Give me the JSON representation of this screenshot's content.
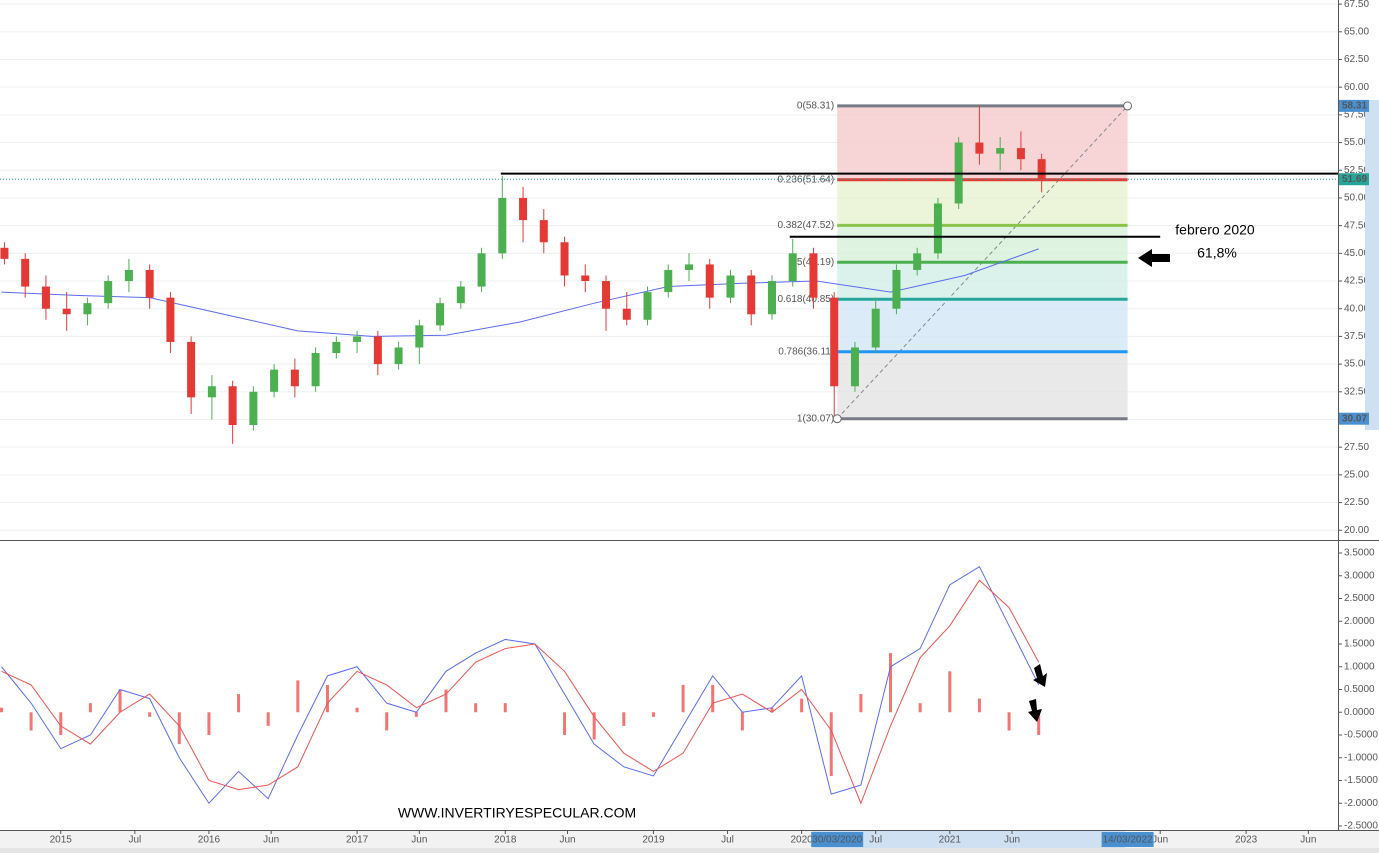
{
  "chart_data": [
    {
      "type": "candlestick",
      "xlim": [
        2014.59,
        2023.62
      ],
      "ylim": [
        19.12,
        67.87
      ],
      "yticks": [
        {
          "value": 67.5,
          "label": "67.50"
        },
        {
          "value": 65,
          "label": "65.00"
        },
        {
          "value": 62.5,
          "label": "62.50"
        },
        {
          "value": 60,
          "label": "60.00"
        },
        {
          "value": 57.5,
          "label": "57.50"
        },
        {
          "value": 55,
          "label": "55.00"
        },
        {
          "value": 52.5,
          "label": "52.50"
        },
        {
          "value": 50,
          "label": "50.00"
        },
        {
          "value": 47.5,
          "label": "47.50"
        },
        {
          "value": 45,
          "label": "45.00"
        },
        {
          "value": 42.5,
          "label": "42.50"
        },
        {
          "value": 40,
          "label": "40.00"
        },
        {
          "value": 37.5,
          "label": "37.50"
        },
        {
          "value": 35,
          "label": "35.00"
        },
        {
          "value": 32.5,
          "label": "32.50"
        },
        {
          "value": 30,
          "label": "30.00"
        },
        {
          "value": 27.5,
          "label": "27.50"
        },
        {
          "value": 25,
          "label": "25.00"
        },
        {
          "value": 22.5,
          "label": "22.50"
        },
        {
          "value": 20,
          "label": "20.00"
        }
      ],
      "grid": true,
      "up_color": "#4caf50",
      "down_color": "#e53935",
      "x": [
        2014.62,
        2014.76,
        2014.9,
        2015.04,
        2015.18,
        2015.32,
        2015.46,
        2015.6,
        2015.74,
        2015.88,
        2016.02,
        2016.16,
        2016.3,
        2016.44,
        2016.58,
        2016.72,
        2016.86,
        2017.0,
        2017.14,
        2017.28,
        2017.42,
        2017.56,
        2017.7,
        2017.84,
        2017.98,
        2018.12,
        2018.26,
        2018.4,
        2018.54,
        2018.68,
        2018.82,
        2018.96,
        2019.1,
        2019.24,
        2019.38,
        2019.52,
        2019.66,
        2019.8,
        2019.94,
        2020.08,
        2020.22,
        2020.36,
        2020.5,
        2020.64,
        2020.78,
        2020.92,
        2021.06,
        2021.2,
        2021.34,
        2021.48,
        2021.62
      ],
      "open": [
        45.5,
        44.5,
        42,
        40,
        39.5,
        40.5,
        42.5,
        43.5,
        41,
        37,
        32,
        33,
        29.5,
        32.5,
        34.5,
        33,
        36,
        37,
        37.5,
        35,
        36.5,
        38.5,
        40.5,
        42,
        45,
        50,
        48,
        46,
        43,
        42.5,
        40,
        39,
        41.5,
        43.5,
        44,
        41,
        43,
        39.5,
        42.5,
        45,
        41,
        33,
        36.5,
        40,
        43.5,
        45,
        49.5,
        55,
        54,
        54.5,
        53.5
      ],
      "high": [
        46,
        45,
        43,
        41.5,
        41,
        43,
        44.5,
        44,
        41.5,
        37.5,
        34,
        33.5,
        33,
        35,
        35.5,
        36.5,
        37.5,
        38,
        38,
        37,
        39,
        41,
        42.5,
        45.5,
        52,
        51,
        49,
        46.5,
        44,
        43,
        41.5,
        42,
        44,
        45,
        44.5,
        43.5,
        43.5,
        43,
        46.3,
        45.5,
        41.5,
        37,
        41,
        44,
        45.5,
        50,
        55.5,
        58.31,
        55.5,
        56,
        54
      ],
      "low": [
        44,
        41,
        39,
        38,
        38.5,
        40,
        41.5,
        40,
        36,
        30.5,
        30,
        27.8,
        29,
        32,
        32,
        32.5,
        35.5,
        36,
        34,
        34.5,
        35,
        38,
        40,
        41.5,
        44.5,
        46,
        45,
        42,
        41.5,
        38,
        38.5,
        38.5,
        41,
        42.5,
        40,
        40.5,
        38.5,
        39,
        42,
        40,
        30.07,
        32.5,
        36,
        39.5,
        43,
        44.5,
        49,
        53,
        52.5,
        52.5,
        50.5
      ],
      "close": [
        44.5,
        42,
        40,
        39.5,
        40.5,
        42.5,
        43.5,
        41,
        37,
        32,
        33,
        29.5,
        32.5,
        34.5,
        33,
        36,
        37,
        37.5,
        35,
        36.5,
        38.5,
        40.5,
        42,
        45,
        50,
        48,
        46,
        43,
        42.5,
        40,
        39,
        41.5,
        43.5,
        44,
        41,
        43,
        39.5,
        42.5,
        45,
        41,
        33,
        36.5,
        40,
        43.5,
        45,
        49.5,
        55,
        54,
        54.5,
        53.5,
        51.69
      ],
      "series": [
        {
          "x": [
            2014.6,
            2015.1,
            2015.6,
            2016.1,
            2016.6,
            2017.1,
            2017.6,
            2018.1,
            2018.6,
            2019.1,
            2019.6,
            2020.1,
            2020.6,
            2021.1,
            2021.6
          ],
          "values": [
            41.5,
            41.2,
            41,
            39.5,
            38,
            37.5,
            37.6,
            38.8,
            40.5,
            42,
            42.3,
            42.5,
            41.5,
            43,
            45.4
          ],
          "color": "#5c6bf0"
        }
      ],
      "fib_xrange": [
        2020.24,
        2022.2
      ],
      "fib_levels": [
        {
          "value": 58.31,
          "label": "0(58.31)",
          "color": "#787b86"
        },
        {
          "value": 51.64,
          "label": "0.236(51.64)",
          "color": "#e53935"
        },
        {
          "value": 47.52,
          "label": "0.382(47.52)",
          "color": "#8bc34a"
        },
        {
          "value": 44.19,
          "label": "0.5(44.19)",
          "color": "#4caf50"
        },
        {
          "value": 40.85,
          "label": "0.618(40.85)",
          "color": "#26a69a"
        },
        {
          "value": 36.11,
          "label": "0.786(36.11)",
          "color": "#2196f3"
        },
        {
          "value": 30.07,
          "label": "1(30.07)",
          "color": "#787b86"
        }
      ],
      "fib_zone_colors": [
        "#f4c7c9",
        "#e6f2cc",
        "#d3efd5",
        "#cfeee5",
        "#cfe4f5",
        "#e1e1e1"
      ],
      "hlines": [
        {
          "value": 52.2,
          "from": 2017.97,
          "to": 2023.62,
          "color": "#000000"
        },
        {
          "value": 46.5,
          "from": 2019.92,
          "to": 2022.42,
          "color": "#000000"
        }
      ],
      "axis_markers": [
        58.31,
        51.69,
        30.07
      ],
      "axis_marker_colors": [
        "#4a90d0",
        "#26a69a",
        "#4a90d0"
      ],
      "annotations": [
        "febrero 2020",
        "61,8%"
      ]
    },
    {
      "type": "macd",
      "xlim": [
        2014.59,
        2023.62
      ],
      "ylim": [
        -2.5,
        3.5
      ],
      "yticks": [
        {
          "value": 3.5,
          "label": "3.5000"
        },
        {
          "value": 3,
          "label": "3.0000"
        },
        {
          "value": 2.5,
          "label": "2.5000"
        },
        {
          "value": 2,
          "label": "2.0000"
        },
        {
          "value": 1.5,
          "label": "1.5000"
        },
        {
          "value": 1,
          "label": "1.0000"
        },
        {
          "value": 0.5,
          "label": "0.5000"
        },
        {
          "value": 0,
          "label": "0.0000"
        },
        {
          "value": -0.5,
          "label": "-0.5000"
        },
        {
          "value": -1,
          "label": "-1.0000"
        },
        {
          "value": -1.5,
          "label": "-1.5000"
        },
        {
          "value": -2,
          "label": "-2.0000"
        },
        {
          "value": -2.5,
          "label": "-2.5000"
        }
      ],
      "xticks": [
        {
          "value": 2015,
          "label": "2015"
        },
        {
          "value": 2015.5,
          "label": "Jul"
        },
        {
          "value": 2016,
          "label": "2016"
        },
        {
          "value": 2016.42,
          "label": "Jun"
        },
        {
          "value": 2017,
          "label": "2017"
        },
        {
          "value": 2017.42,
          "label": "Jun"
        },
        {
          "value": 2018,
          "label": "2018"
        },
        {
          "value": 2018.42,
          "label": "Jun"
        },
        {
          "value": 2019,
          "label": "2019"
        },
        {
          "value": 2019.5,
          "label": "Jul"
        },
        {
          "value": 2020,
          "label": "2020"
        },
        {
          "value": 2020.5,
          "label": "Jul"
        },
        {
          "value": 2021,
          "label": "2021"
        },
        {
          "value": 2021.42,
          "label": "Jun"
        },
        {
          "value": 2022.42,
          "label": "Jun"
        },
        {
          "value": 2023,
          "label": "2023"
        },
        {
          "value": 2023.42,
          "label": "Jun"
        }
      ],
      "x_markers": [
        {
          "value": 2020.24,
          "label": "30/03/2020"
        },
        {
          "value": 2022.2,
          "label": "14/03/2022"
        }
      ],
      "x": [
        2014.6,
        2014.8,
        2015.0,
        2015.2,
        2015.4,
        2015.6,
        2015.8,
        2016.0,
        2016.2,
        2016.4,
        2016.6,
        2016.8,
        2017.0,
        2017.2,
        2017.4,
        2017.6,
        2017.8,
        2018.0,
        2018.2,
        2018.4,
        2018.6,
        2018.8,
        2019.0,
        2019.2,
        2019.4,
        2019.6,
        2019.8,
        2020.0,
        2020.2,
        2020.4,
        2020.6,
        2020.8,
        2021.0,
        2021.2,
        2021.4,
        2021.6
      ],
      "series": [
        {
          "values": [
            1.0,
            0.2,
            -0.8,
            -0.5,
            0.5,
            0.3,
            -1.0,
            -2.0,
            -1.3,
            -1.9,
            -0.5,
            0.8,
            1.0,
            0.2,
            0.0,
            0.9,
            1.3,
            1.6,
            1.5,
            0.4,
            -0.7,
            -1.2,
            -1.4,
            -0.3,
            0.8,
            0.0,
            0.1,
            0.8,
            -1.8,
            -1.6,
            1.0,
            1.4,
            2.8,
            3.2,
            1.9,
            0.6
          ],
          "color": "#5c6bf0"
        },
        {
          "values": [
            0.9,
            0.6,
            -0.3,
            -0.7,
            0.0,
            0.4,
            -0.3,
            -1.5,
            -1.7,
            -1.6,
            -1.2,
            0.2,
            0.9,
            0.6,
            0.1,
            0.4,
            1.1,
            1.4,
            1.5,
            0.9,
            -0.1,
            -0.9,
            -1.3,
            -0.9,
            0.2,
            0.4,
            0.0,
            0.5,
            -0.4,
            -2.0,
            -0.3,
            1.2,
            1.9,
            2.9,
            2.3,
            1.1
          ],
          "color": "#ef5350"
        }
      ],
      "histogram": [
        0.1,
        -0.4,
        -0.5,
        0.2,
        0.5,
        -0.1,
        -0.7,
        -0.5,
        0.4,
        -0.3,
        0.7,
        0.6,
        0.1,
        -0.4,
        -0.1,
        0.5,
        0.2,
        0.2,
        0.0,
        -0.5,
        -0.6,
        -0.3,
        -0.1,
        0.6,
        0.6,
        -0.4,
        0.1,
        0.3,
        -1.4,
        0.4,
        1.3,
        0.2,
        0.9,
        0.3,
        -0.4,
        -0.5
      ],
      "histogram_color": "#ef5350",
      "watermark": "WWW.INVERTIRYESPECULAR.COM"
    }
  ]
}
